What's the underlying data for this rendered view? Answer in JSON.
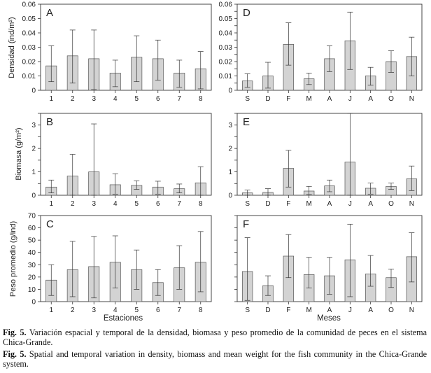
{
  "figure": {
    "row_labels": [
      "Densidad (ind/m²)",
      "Biomasa (g/m²)",
      "Peso promedio (g/ind)"
    ],
    "x_label_left": "Estaciones",
    "x_label_right": "Meses"
  },
  "caption": {
    "es_label": "Fig. 5.",
    "es_text": "Variación espacial y temporal de la densidad, biomasa y peso promedio de la comunidad de peces en el sistema Chica-Grande.",
    "en_label": "Fig. 5.",
    "en_text": "Spatial and temporal variation in density, biomass and mean weight for the fish community in the Chica-Grande system."
  },
  "chart_data": [
    {
      "panel": "A",
      "type": "bar",
      "title": "A",
      "categories": [
        "1",
        "2",
        "3",
        "4",
        "5",
        "6",
        "7",
        "8"
      ],
      "values": [
        0.017,
        0.024,
        0.022,
        0.012,
        0.023,
        0.022,
        0.012,
        0.015
      ],
      "error_low": [
        0.006,
        0.005,
        0.0005,
        0.0025,
        0.006,
        0.007,
        0.002,
        0.001
      ],
      "error_high": [
        0.031,
        0.042,
        0.042,
        0.021,
        0.038,
        0.035,
        0.021,
        0.027
      ],
      "ylabel": "Densidad (ind/m²)",
      "ylim": [
        0,
        0.06
      ],
      "yticks": [
        0,
        0.01,
        0.02,
        0.03,
        0.04,
        0.05,
        0.06
      ],
      "ytick_labels": [
        "0",
        "0.01",
        "0.02",
        "0.03",
        "0.04",
        "0.05",
        "0.06"
      ]
    },
    {
      "panel": "D",
      "type": "bar",
      "title": "D",
      "categories": [
        "S",
        "D",
        "F",
        "M",
        "A",
        "J",
        "A",
        "O",
        "N"
      ],
      "values": [
        0.0065,
        0.01,
        0.032,
        0.008,
        0.022,
        0.0345,
        0.01,
        0.02,
        0.0235
      ],
      "error_low": [
        0.002,
        0.0015,
        0.0175,
        0.004,
        0.013,
        0.0145,
        0.0035,
        0.0125,
        0.01
      ],
      "error_high": [
        0.0115,
        0.0195,
        0.047,
        0.012,
        0.031,
        0.0545,
        0.016,
        0.0275,
        0.037
      ],
      "ylim": [
        0,
        0.06
      ],
      "yticks": [
        0,
        0.005,
        0.01,
        0.015,
        0.02,
        0.025,
        0.03,
        0.035,
        0.04,
        0.045,
        0.05,
        0.055,
        0.06
      ],
      "ytick_labels": [
        "0",
        "",
        "0.01",
        "",
        "0.02",
        "",
        "0.03",
        "",
        "0.04",
        "",
        "0.05",
        "",
        "0.06"
      ]
    },
    {
      "panel": "B",
      "type": "bar",
      "title": "B",
      "categories": [
        "1",
        "2",
        "3",
        "4",
        "5",
        "6",
        "7",
        "8"
      ],
      "values": [
        0.35,
        0.82,
        1.0,
        0.45,
        0.42,
        0.35,
        0.28,
        0.53
      ],
      "error_low": [
        0.1,
        0.0,
        0.0,
        0.05,
        0.25,
        0.05,
        0.1,
        0.0
      ],
      "error_high": [
        0.65,
        1.75,
        3.05,
        0.92,
        0.62,
        0.6,
        0.48,
        1.22
      ],
      "ylabel": "Biomasa (g/m²)",
      "ylim": [
        0,
        3.5
      ],
      "yticks": [
        0,
        0.5,
        1,
        1.5,
        2,
        2.5,
        3,
        3.5
      ],
      "ytick_labels": [
        "0",
        "",
        "1",
        "",
        "2",
        "",
        "3",
        ""
      ]
    },
    {
      "panel": "E",
      "type": "bar",
      "title": "E",
      "categories": [
        "S",
        "D",
        "F",
        "M",
        "A",
        "J",
        "A",
        "O",
        "N"
      ],
      "values": [
        0.1,
        0.12,
        1.15,
        0.18,
        0.4,
        1.42,
        0.3,
        0.38,
        0.7
      ],
      "error_low": [
        0.0,
        0.0,
        0.35,
        0.03,
        0.15,
        0.0,
        0.05,
        0.25,
        0.2
      ],
      "error_high": [
        0.22,
        0.28,
        1.92,
        0.38,
        0.65,
        3.5,
        0.52,
        0.52,
        1.25
      ],
      "ylim": [
        0,
        3.5
      ],
      "yticks": [
        0,
        0.5,
        1,
        1.5,
        2,
        2.5,
        3,
        3.5
      ],
      "ytick_labels": [
        "0",
        "",
        "1",
        "",
        "2",
        "",
        "3",
        ""
      ]
    },
    {
      "panel": "C",
      "type": "bar",
      "title": "C",
      "categories": [
        "1",
        "2",
        "3",
        "4",
        "5",
        "6",
        "7",
        "8"
      ],
      "values": [
        17.5,
        26,
        28.5,
        32,
        26,
        15.5,
        27.5,
        32
      ],
      "error_low": [
        5,
        4,
        3,
        11,
        10,
        5,
        10,
        8
      ],
      "error_high": [
        30,
        49,
        53,
        53.5,
        42,
        26,
        45.5,
        57
      ],
      "ylabel": "Peso promedio (g/ind)",
      "xlabel": "Estaciones",
      "ylim": [
        0,
        70
      ],
      "yticks": [
        0,
        10,
        20,
        30,
        40,
        50,
        60,
        70
      ],
      "ytick_labels": [
        "0",
        "10",
        "20",
        "30",
        "40",
        "50",
        "60",
        "70"
      ]
    },
    {
      "panel": "F",
      "type": "bar",
      "title": "F",
      "categories": [
        "S",
        "D",
        "F",
        "M",
        "A",
        "J",
        "A",
        "O",
        "N"
      ],
      "values": [
        24.5,
        13,
        37,
        22,
        21,
        34,
        22.5,
        19.5,
        36.5
      ],
      "error_low": [
        1,
        5,
        19.5,
        11,
        6,
        4,
        12.5,
        11.5,
        16
      ],
      "error_high": [
        52,
        21,
        54.5,
        36,
        36,
        63,
        37.5,
        26.5,
        56
      ],
      "xlabel": "Meses",
      "ylim": [
        0,
        70
      ],
      "yticks": [
        0,
        10,
        20,
        30,
        40,
        50,
        60,
        70
      ],
      "ytick_labels": [
        "",
        "",
        "",
        "",
        "",
        "",
        "",
        ""
      ]
    }
  ]
}
